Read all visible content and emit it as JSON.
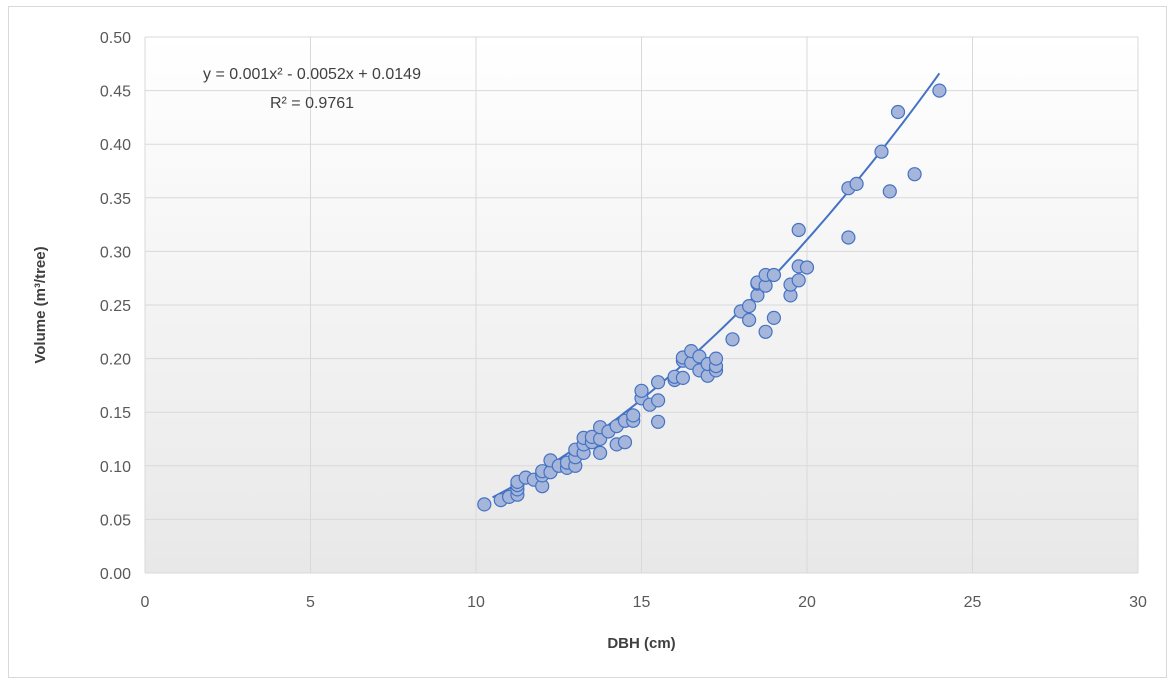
{
  "chart_data": {
    "type": "scatter",
    "xlabel": "DBH (cm)",
    "ylabel": "Volume (m³/tree)",
    "xlim": [
      0,
      30
    ],
    "ylim": [
      0,
      0.5
    ],
    "x_ticks": [
      "0",
      "5",
      "10",
      "15",
      "20",
      "25",
      "30"
    ],
    "y_ticks": [
      "0.00",
      "0.05",
      "0.10",
      "0.15",
      "0.20",
      "0.25",
      "0.30",
      "0.35",
      "0.40",
      "0.45",
      "0.50"
    ],
    "grid": true,
    "legend": "none",
    "trendline": {
      "type": "polynomial",
      "order": 2,
      "equation": "y = 0.001x² - 0.0052x + 0.0149",
      "r_squared": "R² = 0.9761",
      "coefficients": [
        0.001,
        -0.0052,
        0.0149
      ],
      "x_range": [
        10.5,
        24
      ]
    },
    "series": [
      {
        "x": [
          10.25,
          10.75,
          11.0,
          11.25,
          11.25,
          11.25,
          11.25,
          11.5,
          11.75,
          12.0,
          12.0,
          12.0,
          12.25,
          12.25,
          12.5,
          12.75,
          12.75,
          13.0,
          13.0,
          13.0,
          13.25,
          13.25,
          13.25,
          13.5,
          13.5,
          13.75,
          13.75,
          13.75,
          14.0,
          14.25,
          14.25,
          14.5,
          14.5,
          14.75,
          14.75,
          15.0,
          15.0,
          15.25,
          15.5,
          15.5,
          15.5,
          16.0,
          16.0,
          16.25,
          16.25,
          16.25,
          16.5,
          16.5,
          16.75,
          16.75,
          17.0,
          17.0,
          17.25,
          17.25,
          17.25,
          17.75,
          18.0,
          18.25,
          18.25,
          18.5,
          18.5,
          18.5,
          18.75,
          18.75,
          18.75,
          19.0,
          19.0,
          19.5,
          19.5,
          19.75,
          19.75,
          19.75,
          20.0,
          21.25,
          21.25,
          21.5,
          22.25,
          22.5,
          22.75,
          23.25,
          24.0
        ],
        "y": [
          0.064,
          0.068,
          0.071,
          0.073,
          0.078,
          0.082,
          0.085,
          0.089,
          0.087,
          0.081,
          0.091,
          0.095,
          0.094,
          0.105,
          0.1,
          0.098,
          0.103,
          0.1,
          0.108,
          0.115,
          0.112,
          0.12,
          0.126,
          0.122,
          0.127,
          0.112,
          0.125,
          0.136,
          0.132,
          0.12,
          0.137,
          0.122,
          0.142,
          0.142,
          0.147,
          0.163,
          0.17,
          0.157,
          0.141,
          0.161,
          0.178,
          0.18,
          0.183,
          0.182,
          0.198,
          0.201,
          0.196,
          0.207,
          0.189,
          0.202,
          0.184,
          0.195,
          0.189,
          0.193,
          0.2,
          0.218,
          0.244,
          0.236,
          0.249,
          0.259,
          0.27,
          0.271,
          0.225,
          0.268,
          0.278,
          0.238,
          0.278,
          0.259,
          0.269,
          0.273,
          0.286,
          0.32,
          0.285,
          0.313,
          0.359,
          0.363,
          0.393,
          0.356,
          0.43,
          0.372,
          0.45
        ]
      }
    ]
  },
  "colors": {
    "marker_fill": "#a5b6da",
    "marker_stroke": "#4472c4",
    "trendline": "#4472c4",
    "grid": "#d9d9d9",
    "plot_bg_top": "#ffffff",
    "plot_bg_bottom": "#e8e8e8"
  }
}
